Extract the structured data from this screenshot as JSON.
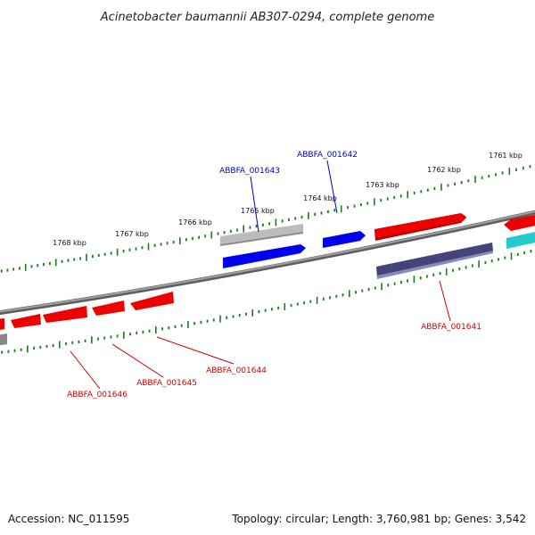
{
  "title": "Acinetobacter baumannii AB307-0294, complete genome",
  "footer": {
    "accession": "Accession: NC_011595",
    "summary": "Topology: circular; Length: 3,760,981 bp; Genes: 3,542"
  },
  "scale_labels": [
    "1768 kbp",
    "1767 kbp",
    "1766 kbp",
    "1765 kbp",
    "1764 kbp",
    "1763 kbp",
    "1762 kbp",
    "1761 kbp"
  ],
  "gene_labels": {
    "g1643": "ABBFA_001643",
    "g1642": "ABBFA_001642",
    "g1641": "ABBFA_001641",
    "g1644": "ABBFA_001644",
    "g1645": "ABBFA_001645",
    "g1646": "ABBFA_001646"
  },
  "colors": {
    "backbone": "#7a7a7a",
    "tick": "#1e7a1e",
    "forward_gene": "#ee0000",
    "blue_gene": "#0000ee",
    "grey_gene": "#b8b8b8",
    "navy_gene": "#44447a",
    "cyan_gene": "#22cccc",
    "label_blue": "#0000cc",
    "label_red": "#cc0000"
  }
}
